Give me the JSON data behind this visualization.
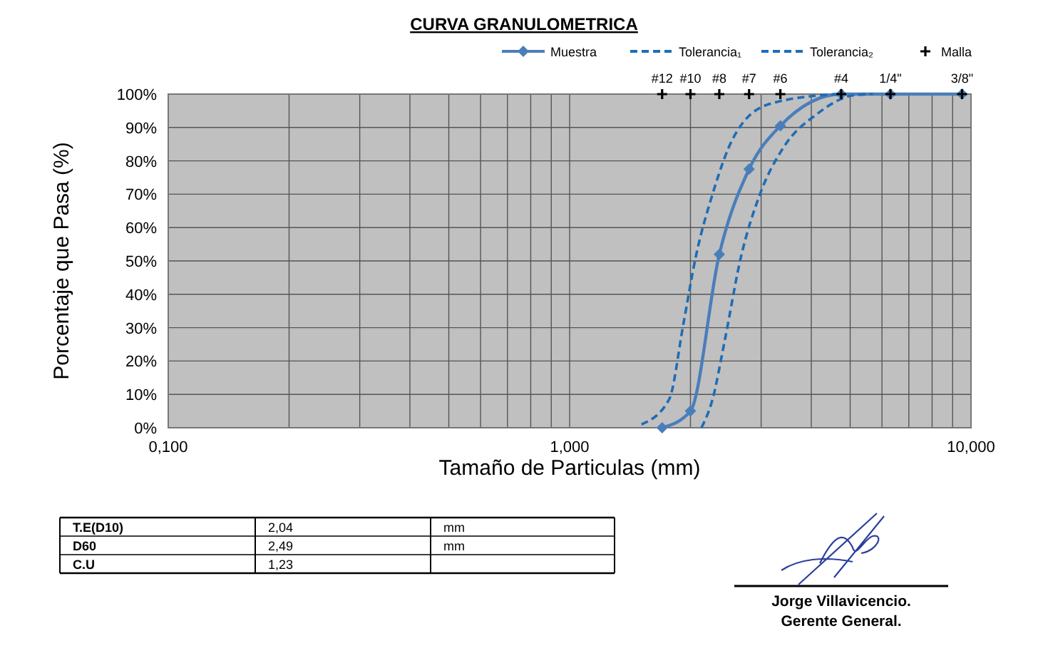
{
  "chart_data": {
    "type": "line",
    "title": "CURVA GRANULOMETRICA",
    "xlabel": "Tamaño de Particulas (mm)",
    "ylabel": "Porcentaje que Pasa (%)",
    "log": "x",
    "xlim": [
      0.1,
      10
    ],
    "xticks": [
      {
        "value": 0.1,
        "label": "0,100"
      },
      {
        "value": 1,
        "label": "1,000"
      },
      {
        "value": 10,
        "label": "10,000"
      }
    ],
    "ylim": [
      0,
      100
    ],
    "yticks": [
      {
        "value": 0,
        "label": "0%"
      },
      {
        "value": 10,
        "label": "10%"
      },
      {
        "value": 20,
        "label": "20%"
      },
      {
        "value": 30,
        "label": "30%"
      },
      {
        "value": 40,
        "label": "40%"
      },
      {
        "value": 50,
        "label": "50%"
      },
      {
        "value": 60,
        "label": "60%"
      },
      {
        "value": 70,
        "label": "70%"
      },
      {
        "value": 80,
        "label": "80%"
      },
      {
        "value": 90,
        "label": "90%"
      },
      {
        "value": 100,
        "label": "100%"
      }
    ],
    "grid": true,
    "legend": "top right",
    "series": [
      {
        "name": "Muestra",
        "color": "#4a7ebb",
        "marker": "diamond",
        "line_style": "solid",
        "x": [
          1.7,
          2.0,
          2.36,
          2.8,
          3.35,
          4.75,
          6.3,
          9.5
        ],
        "values": [
          0,
          5,
          52,
          77.5,
          90.5,
          100,
          100,
          100
        ]
      },
      {
        "name": "Tolerancia₁",
        "color": "#1f6db5",
        "marker": "none",
        "line_style": "dashed",
        "x": [
          1.51,
          1.77,
          1.92,
          2.06,
          2.27,
          2.56,
          3.14,
          4.6
        ],
        "values": [
          1,
          8.5,
          31,
          51,
          70,
          87,
          97,
          100
        ]
      },
      {
        "name": "Tolerancia₂",
        "color": "#1f6db5",
        "marker": "none",
        "line_style": "dashed",
        "x": [
          2.13,
          2.27,
          2.43,
          2.67,
          2.98,
          3.41,
          4.13,
          5.13,
          5.7
        ],
        "values": [
          0,
          8.5,
          25.6,
          51,
          70,
          84,
          94,
          99.7,
          100
        ]
      },
      {
        "name": "Malla",
        "type": "scatter",
        "color": "#000000",
        "marker": "cross",
        "x": [
          1.7,
          2.0,
          2.36,
          2.8,
          3.35,
          4.75,
          6.3,
          9.5
        ],
        "values": [
          100,
          100,
          100,
          100,
          100,
          100,
          100,
          100
        ]
      }
    ],
    "annotations": [
      {
        "text": "#12",
        "x": 1.7,
        "y": 100
      },
      {
        "text": "#10",
        "x": 2.0,
        "y": 100
      },
      {
        "text": "#8",
        "x": 2.36,
        "y": 100
      },
      {
        "text": "#7",
        "x": 2.8,
        "y": 100
      },
      {
        "text": "#6",
        "x": 3.35,
        "y": 100
      },
      {
        "text": "#4",
        "x": 4.75,
        "y": 100
      },
      {
        "text": "1/4\"",
        "x": 6.3,
        "y": 100
      },
      {
        "text": "3/8\"",
        "x": 9.5,
        "y": 100
      },
      "T.E(D10)",
      "2,04",
      "mm",
      "D60",
      "2,49",
      "mm",
      "C.U",
      "1,23",
      "Jorge Villavicencio.",
      "Gerente General."
    ]
  }
}
